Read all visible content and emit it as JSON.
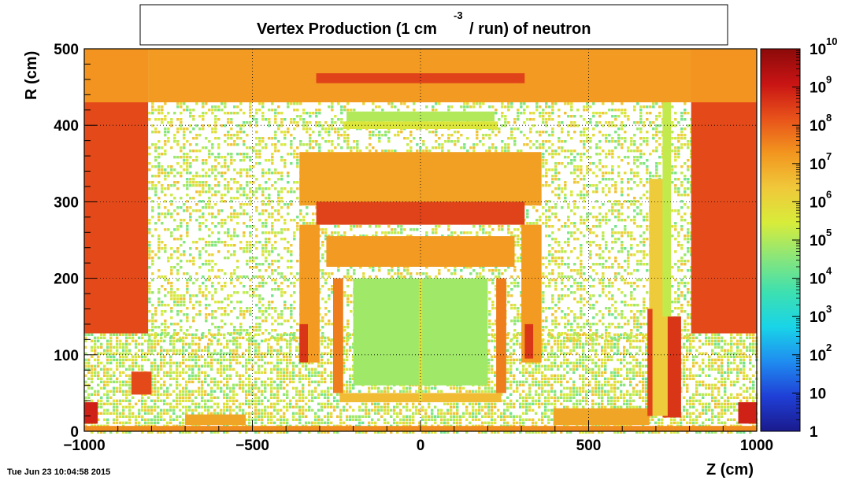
{
  "chart_data": {
    "type": "heatmap",
    "title": {
      "main": "Vertex Production (1 cm",
      "exp": "-3",
      "tail": "/ run) of   neutron"
    },
    "xlabel": "Z (cm)",
    "ylabel": "R (cm)",
    "xlim": [
      -1000,
      1000
    ],
    "ylim": [
      0,
      500
    ],
    "x_ticks": [
      -1000,
      -500,
      0,
      500,
      1000
    ],
    "x_tick_labels": [
      "−1000",
      "−500",
      "0",
      "500",
      "1000"
    ],
    "y_ticks": [
      0,
      100,
      200,
      300,
      400,
      500
    ],
    "y_tick_labels": [
      "0",
      "100",
      "200",
      "300",
      "400",
      "500"
    ],
    "grid": true,
    "colorbar": {
      "scale": "log",
      "range": [
        1,
        10000000000
      ],
      "labels": [
        {
          "value": 1,
          "base": "1",
          "exp": ""
        },
        {
          "value": 10,
          "base": "10",
          "exp": ""
        },
        {
          "value": 100,
          "base": "10",
          "exp": "2"
        },
        {
          "value": 1000,
          "base": "10",
          "exp": "3"
        },
        {
          "value": 10000,
          "base": "10",
          "exp": "4"
        },
        {
          "value": 100000,
          "base": "10",
          "exp": "5"
        },
        {
          "value": 1000000,
          "base": "10",
          "exp": "6"
        },
        {
          "value": 10000000,
          "base": "10",
          "exp": "7"
        },
        {
          "value": 100000000,
          "base": "10",
          "exp": "8"
        },
        {
          "value": 1000000000,
          "base": "10",
          "exp": "9"
        },
        {
          "value": 10000000000,
          "base": "10",
          "exp": "10"
        }
      ],
      "palette": [
        "#1a1a8c",
        "#1f3fd6",
        "#1f8cf0",
        "#19d4e8",
        "#3de0b0",
        "#8ae67a",
        "#d8ec3a",
        "#f0c83a",
        "#f2961f",
        "#e8521a",
        "#c81414",
        "#8c0a0a"
      ]
    },
    "regions": [
      {
        "name": "endcap-left",
        "z": [
          -1000,
          -810
        ],
        "r": [
          128,
          500
        ],
        "log10": 8.3
      },
      {
        "name": "endcap-right",
        "z": [
          805,
          1000
        ],
        "r": [
          128,
          500
        ],
        "log10": 8.3
      },
      {
        "name": "top-band",
        "z": [
          -810,
          805
        ],
        "r": [
          430,
          500
        ],
        "log10": 7.2
      },
      {
        "name": "top-band-left-edge",
        "z": [
          -1000,
          -810
        ],
        "r": [
          430,
          500
        ],
        "log10": 7.3
      },
      {
        "name": "top-band-right-edge",
        "z": [
          805,
          1000
        ],
        "r": [
          430,
          500
        ],
        "log10": 7.3
      },
      {
        "name": "top-inner-strip",
        "z": [
          -310,
          310
        ],
        "r": [
          455,
          468
        ],
        "log10": 8.4
      },
      {
        "name": "calorimeter-upper",
        "z": [
          -360,
          360
        ],
        "r": [
          295,
          365
        ],
        "log10": 7.1
      },
      {
        "name": "calorimeter-cells",
        "z": [
          -310,
          310
        ],
        "r": [
          270,
          300
        ],
        "log10": 8.4
      },
      {
        "name": "solenoid-wedge",
        "z": [
          -280,
          280
        ],
        "r": [
          215,
          255
        ],
        "log10": 7.2
      },
      {
        "name": "barrel-left-wall",
        "z": [
          -360,
          -300
        ],
        "r": [
          90,
          270
        ],
        "log10": 7.2
      },
      {
        "name": "barrel-right-wall",
        "z": [
          300,
          360
        ],
        "r": [
          90,
          270
        ],
        "log10": 7.2
      },
      {
        "name": "barrel-left-inner",
        "z": [
          -260,
          -230
        ],
        "r": [
          50,
          200
        ],
        "log10": 7.6
      },
      {
        "name": "barrel-right-inner",
        "z": [
          225,
          255
        ],
        "r": [
          50,
          200
        ],
        "log10": 7.6
      },
      {
        "name": "barrel-left-hot",
        "z": [
          -360,
          -335
        ],
        "r": [
          90,
          140
        ],
        "log10": 8.6
      },
      {
        "name": "barrel-right-hot",
        "z": [
          310,
          335
        ],
        "r": [
          95,
          140
        ],
        "log10": 8.6
      },
      {
        "name": "inner-plate",
        "z": [
          -240,
          240
        ],
        "r": [
          38,
          50
        ],
        "log10": 6.6
      },
      {
        "name": "beam-plane",
        "z": [
          -1000,
          1000
        ],
        "r": [
          0,
          7
        ],
        "log10": 7.4
      },
      {
        "name": "left-floor-slab",
        "z": [
          -700,
          -520
        ],
        "r": [
          8,
          22
        ],
        "log10": 7.0
      },
      {
        "name": "right-floor-slab",
        "z": [
          395,
          680
        ],
        "r": [
          8,
          30
        ],
        "log10": 7.0
      },
      {
        "name": "left-corner-block",
        "z": [
          -1000,
          -960
        ],
        "r": [
          10,
          38
        ],
        "log10": 8.9
      },
      {
        "name": "right-corner-block",
        "z": [
          945,
          1000
        ],
        "r": [
          10,
          38
        ],
        "log10": 8.9
      },
      {
        "name": "left-small-block",
        "z": [
          -860,
          -800
        ],
        "r": [
          48,
          78
        ],
        "log10": 8.3
      },
      {
        "name": "right-column-hot",
        "z": [
          720,
          775
        ],
        "r": [
          18,
          150
        ],
        "log10": 8.6
      },
      {
        "name": "right-column",
        "z": [
          680,
          735
        ],
        "r": [
          20,
          330
        ],
        "log10": 6.3
      },
      {
        "name": "right-column-thin",
        "z": [
          720,
          745
        ],
        "r": [
          150,
          430
        ],
        "log10": 5.2
      },
      {
        "name": "right-spike",
        "z": [
          675,
          690
        ],
        "r": [
          20,
          160
        ],
        "log10": 8.4
      },
      {
        "name": "top-arc-upper",
        "z": [
          -220,
          220
        ],
        "r": [
          405,
          418
        ],
        "log10": 5.0
      },
      {
        "name": "top-arc-lower",
        "z": [
          -230,
          230
        ],
        "r": [
          395,
          405
        ],
        "log10": 5.6
      },
      {
        "name": "center-cage",
        "z": [
          -200,
          200
        ],
        "r": [
          60,
          200
        ],
        "log10": 4.8
      },
      {
        "name": "center-line",
        "z": [
          -5,
          5
        ],
        "r": [
          40,
          200
        ],
        "log10": 5.8
      }
    ],
    "speckle_regions": [
      {
        "z": [
          -810,
          805
        ],
        "r": [
          120,
          430
        ],
        "density": 0.38
      },
      {
        "z": [
          -1000,
          1000
        ],
        "r": [
          0,
          128
        ],
        "density": 0.62
      }
    ]
  },
  "footer": {
    "datestamp": "Tue Jun 23 10:04:58 2015"
  }
}
